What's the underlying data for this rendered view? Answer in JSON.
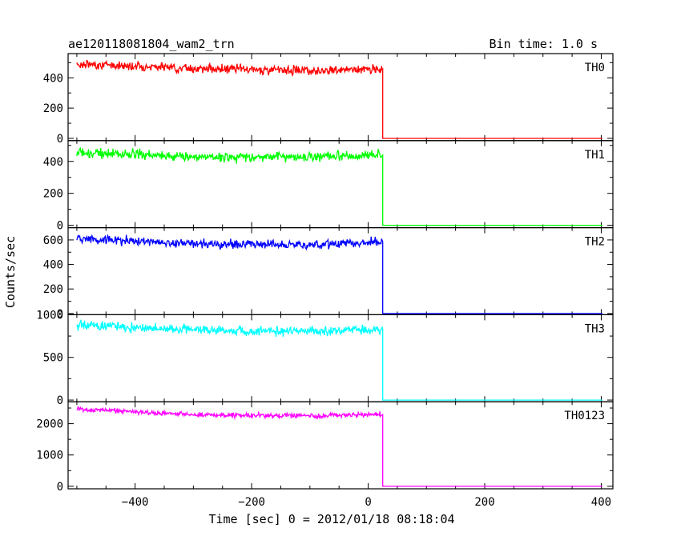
{
  "header": {
    "title": "ae120118081804_wam2_trn",
    "bin_time": "Bin time: 1.0 s"
  },
  "chart_data": {
    "type": "line",
    "title": "ae120118081804_wam2_trn",
    "subtitle": "Bin time: 1.0 s",
    "xlabel": "Time [sec] 0 = 2012/01/18 08:18:04",
    "ylabel": "Counts/sec",
    "xlim": [
      -515,
      420
    ],
    "x_ticks": [
      -400,
      -200,
      0,
      200,
      400
    ],
    "x_tick_labels": [
      "−400",
      "−200",
      "0",
      "200",
      "400"
    ],
    "grid": false,
    "drop_time": 25,
    "series": [
      {
        "name": "TH0",
        "color": "#ff0000",
        "ylim": [
          -15,
          560
        ],
        "y_ticks": [
          0,
          200,
          400
        ],
        "y_tick_labels": [
          "0",
          "200",
          "400"
        ],
        "x": [
          -500,
          -450,
          -400,
          -350,
          -300,
          -250,
          -200,
          -150,
          -100,
          -50,
          0,
          24,
          25,
          420
        ],
        "values": [
          490,
          485,
          478,
          470,
          462,
          458,
          455,
          452,
          450,
          452,
          455,
          458,
          0,
          0
        ],
        "noise_amplitude": 20
      },
      {
        "name": "TH1",
        "color": "#00ff00",
        "ylim": [
          -15,
          530
        ],
        "y_ticks": [
          0,
          200,
          400
        ],
        "y_tick_labels": [
          "0",
          "200",
          "400"
        ],
        "x": [
          -500,
          -450,
          -400,
          -350,
          -300,
          -250,
          -200,
          -150,
          -100,
          -50,
          0,
          24,
          25,
          420
        ],
        "values": [
          455,
          450,
          440,
          435,
          430,
          428,
          428,
          430,
          430,
          432,
          438,
          440,
          0,
          0
        ],
        "noise_amplitude": 22
      },
      {
        "name": "TH2",
        "color": "#0000ff",
        "ylim": [
          -10,
          700
        ],
        "y_ticks": [
          0,
          200,
          400,
          600
        ],
        "y_tick_labels": [
          "0",
          "200",
          "400",
          "600"
        ],
        "x": [
          -500,
          -450,
          -400,
          -350,
          -300,
          -250,
          -200,
          -150,
          -100,
          -50,
          0,
          24,
          25,
          420
        ],
        "values": [
          610,
          600,
          590,
          580,
          570,
          565,
          568,
          565,
          560,
          570,
          580,
          585,
          0,
          0
        ],
        "noise_amplitude": 25
      },
      {
        "name": "TH3",
        "color": "#00ffff",
        "ylim": [
          -20,
          1000
        ],
        "y_ticks": [
          0,
          500,
          1000
        ],
        "y_tick_labels": [
          "0",
          "500",
          "1000"
        ],
        "x": [
          -500,
          -450,
          -400,
          -350,
          -300,
          -250,
          -200,
          -150,
          -100,
          -50,
          0,
          24,
          25,
          420
        ],
        "values": [
          880,
          870,
          855,
          840,
          828,
          815,
          810,
          812,
          810,
          815,
          825,
          830,
          0,
          0
        ],
        "noise_amplitude": 38
      },
      {
        "name": "TH0123",
        "color": "#ff00ff",
        "ylim": [
          -80,
          2700
        ],
        "y_ticks": [
          0,
          1000,
          2000
        ],
        "y_tick_labels": [
          "0",
          "1000",
          "2000"
        ],
        "x": [
          -500,
          -450,
          -400,
          -350,
          -300,
          -250,
          -200,
          -150,
          -100,
          -50,
          0,
          24,
          25,
          420
        ],
        "values": [
          2450,
          2420,
          2380,
          2330,
          2290,
          2270,
          2260,
          2260,
          2255,
          2265,
          2290,
          2310,
          0,
          0
        ],
        "noise_amplitude": 55
      }
    ]
  }
}
